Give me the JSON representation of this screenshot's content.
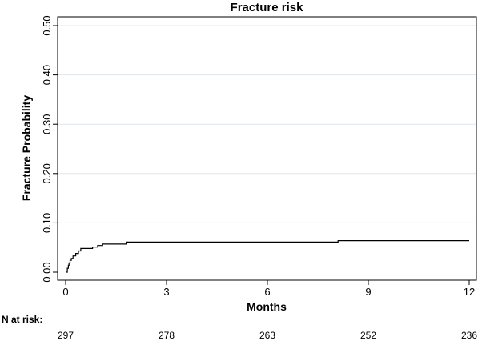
{
  "chart_data": {
    "type": "line",
    "title": "Fracture risk",
    "xlabel": "Months",
    "ylabel": "Fracture Probability",
    "xlim": [
      0,
      12
    ],
    "ylim": [
      0,
      0.5
    ],
    "x_ticks": [
      0,
      3,
      6,
      9,
      12
    ],
    "x_tick_labels": [
      "0",
      "3",
      "6",
      "9",
      "12"
    ],
    "y_ticks": [
      0,
      0.1,
      0.2,
      0.3,
      0.4,
      0.5
    ],
    "y_tick_labels": [
      "0.00",
      "0.10",
      "0.20",
      "0.30",
      "0.40",
      "0.50"
    ],
    "grid": "horizontal",
    "series": [
      {
        "step": true,
        "x": [
          0,
          0.05,
          0.08,
          0.1,
          0.13,
          0.17,
          0.22,
          0.3,
          0.38,
          0.45,
          0.8,
          0.95,
          1.1,
          1.8,
          8.1,
          12.0
        ],
        "y": [
          0.0,
          0.008,
          0.014,
          0.019,
          0.024,
          0.028,
          0.033,
          0.038,
          0.043,
          0.048,
          0.051,
          0.054,
          0.057,
          0.061,
          0.064,
          0.064
        ]
      }
    ],
    "risk_table": {
      "label": "N at risk:",
      "times": [
        0,
        3,
        6,
        9,
        12
      ],
      "values": [
        "297",
        "278",
        "263",
        "252",
        "236"
      ]
    }
  }
}
